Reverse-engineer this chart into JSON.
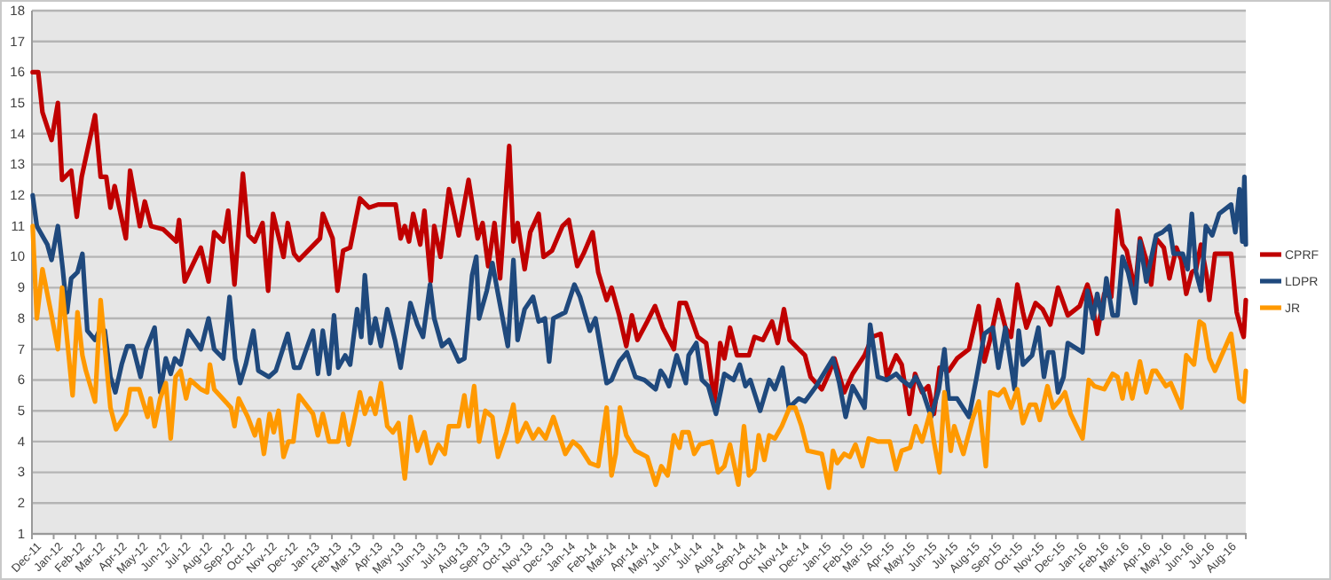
{
  "chart_data": {
    "type": "line",
    "xlim": [
      "2011-12-01",
      "2016-08-28"
    ],
    "xticks": [
      {
        "value": "2011-12-01",
        "label": "Dec-11"
      },
      {
        "value": "2012-01-01",
        "label": "Jan-12"
      },
      {
        "value": "2012-02-01",
        "label": "Feb-12"
      },
      {
        "value": "2012-03-01",
        "label": "Mar-12"
      },
      {
        "value": "2012-04-01",
        "label": "Apr-12"
      },
      {
        "value": "2012-05-01",
        "label": "May-12"
      },
      {
        "value": "2012-06-01",
        "label": "Jun-12"
      },
      {
        "value": "2012-07-01",
        "label": "Jul-12"
      },
      {
        "value": "2012-08-01",
        "label": "Aug-12"
      },
      {
        "value": "2012-09-01",
        "label": "Sep-12"
      },
      {
        "value": "2012-10-01",
        "label": "Oct-12"
      },
      {
        "value": "2012-11-01",
        "label": "Nov-12"
      },
      {
        "value": "2012-12-01",
        "label": "Dec-12"
      },
      {
        "value": "2013-01-01",
        "label": "Jan-13"
      },
      {
        "value": "2013-02-01",
        "label": "Feb-13"
      },
      {
        "value": "2013-03-01",
        "label": "Mar-13"
      },
      {
        "value": "2013-04-01",
        "label": "Apr-13"
      },
      {
        "value": "2013-05-01",
        "label": "May-13"
      },
      {
        "value": "2013-06-01",
        "label": "Jun-13"
      },
      {
        "value": "2013-07-01",
        "label": "Jul-13"
      },
      {
        "value": "2013-08-01",
        "label": "Aug-13"
      },
      {
        "value": "2013-09-01",
        "label": "Sep-13"
      },
      {
        "value": "2013-10-01",
        "label": "Oct-13"
      },
      {
        "value": "2013-11-01",
        "label": "Nov-13"
      },
      {
        "value": "2013-12-01",
        "label": "Dec-13"
      },
      {
        "value": "2014-01-01",
        "label": "Jan-14"
      },
      {
        "value": "2014-02-01",
        "label": "Feb-14"
      },
      {
        "value": "2014-03-01",
        "label": "Mar-14"
      },
      {
        "value": "2014-04-01",
        "label": "Apr-14"
      },
      {
        "value": "2014-05-01",
        "label": "May-14"
      },
      {
        "value": "2014-06-01",
        "label": "Jun-14"
      },
      {
        "value": "2014-07-01",
        "label": "Jul-14"
      },
      {
        "value": "2014-08-01",
        "label": "Aug-14"
      },
      {
        "value": "2014-09-01",
        "label": "Sep-14"
      },
      {
        "value": "2014-10-01",
        "label": "Oct-14"
      },
      {
        "value": "2014-11-01",
        "label": "Nov-14"
      },
      {
        "value": "2014-12-01",
        "label": "Dec-14"
      },
      {
        "value": "2015-01-01",
        "label": "Jan-15"
      },
      {
        "value": "2015-02-01",
        "label": "Feb-15"
      },
      {
        "value": "2015-03-01",
        "label": "Mar-15"
      },
      {
        "value": "2015-04-01",
        "label": "Apr-15"
      },
      {
        "value": "2015-05-01",
        "label": "May-15"
      },
      {
        "value": "2015-06-01",
        "label": "Jun-15"
      },
      {
        "value": "2015-07-01",
        "label": "Jul-15"
      },
      {
        "value": "2015-08-01",
        "label": "Aug-15"
      },
      {
        "value": "2015-09-01",
        "label": "Sep-15"
      },
      {
        "value": "2015-10-01",
        "label": "Oct-15"
      },
      {
        "value": "2015-11-01",
        "label": "Nov-15"
      },
      {
        "value": "2015-12-01",
        "label": "Dec-15"
      },
      {
        "value": "2016-01-01",
        "label": "Jan-16"
      },
      {
        "value": "2016-02-01",
        "label": "Feb-16"
      },
      {
        "value": "2016-03-01",
        "label": "Mar-16"
      },
      {
        "value": "2016-04-01",
        "label": "Apr-16"
      },
      {
        "value": "2016-05-01",
        "label": "May-16"
      },
      {
        "value": "2016-06-01",
        "label": "Jun-16"
      },
      {
        "value": "2016-07-01",
        "label": "Jul-16"
      },
      {
        "value": "2016-08-01",
        "label": "Aug-16"
      }
    ],
    "ylim": [
      1,
      18
    ],
    "yticks": [
      1,
      2,
      3,
      4,
      5,
      6,
      7,
      8,
      9,
      10,
      11,
      12,
      13,
      14,
      15,
      16,
      17,
      18
    ],
    "grid": "y",
    "legend": "right",
    "marker": "none",
    "line_style": "solid",
    "series": [
      {
        "name": "CPRF",
        "color": "#c00000",
        "x": [
          "2011-12-02",
          "2011-12-10",
          "2011-12-16",
          "2011-12-29",
          "2012-01-07",
          "2012-01-13",
          "2012-01-26",
          "2012-02-03",
          "2012-02-10",
          "2012-02-29",
          "2012-03-08",
          "2012-03-16",
          "2012-03-22",
          "2012-03-28",
          "2012-04-13",
          "2012-04-19",
          "2012-05-03",
          "2012-05-10",
          "2012-05-19",
          "2012-06-05",
          "2012-06-24",
          "2012-06-28",
          "2012-07-06",
          "2012-07-29",
          "2012-08-09",
          "2012-08-17",
          "2012-08-30",
          "2012-09-06",
          "2012-09-15",
          "2012-09-27",
          "2012-10-05",
          "2012-10-14",
          "2012-10-25",
          "2012-11-02",
          "2012-11-09",
          "2012-11-24",
          "2012-11-30",
          "2012-12-09",
          "2012-12-16",
          "2013-01-15",
          "2013-01-19",
          "2013-02-02",
          "2013-02-09",
          "2013-02-17",
          "2013-02-27",
          "2013-03-13",
          "2013-03-26",
          "2013-04-08",
          "2013-05-03",
          "2013-05-10",
          "2013-05-16",
          "2013-05-22",
          "2013-05-28",
          "2013-06-07",
          "2013-06-13",
          "2013-06-22",
          "2013-06-27",
          "2013-07-06",
          "2013-07-18",
          "2013-08-01",
          "2013-08-15",
          "2013-08-28",
          "2013-09-04",
          "2013-09-12",
          "2013-09-21",
          "2013-09-29",
          "2013-10-12",
          "2013-10-18",
          "2013-10-24",
          "2013-11-03",
          "2013-11-11",
          "2013-11-23",
          "2013-11-30",
          "2013-12-12",
          "2013-12-27",
          "2014-01-05",
          "2014-01-17",
          "2014-01-26",
          "2014-02-08",
          "2014-02-16",
          "2014-02-28",
          "2014-03-07",
          "2014-03-18",
          "2014-03-28",
          "2014-04-05",
          "2014-04-13",
          "2014-04-27",
          "2014-05-08",
          "2014-05-19",
          "2014-06-04",
          "2014-06-12",
          "2014-06-21",
          "2014-07-08",
          "2014-07-20",
          "2014-08-01",
          "2014-08-09",
          "2014-08-15",
          "2014-08-23",
          "2014-09-02",
          "2014-09-19",
          "2014-09-27",
          "2014-10-09",
          "2014-10-22",
          "2014-10-30",
          "2014-11-08",
          "2014-11-16",
          "2014-11-29",
          "2014-12-08",
          "2014-12-16",
          "2015-01-01",
          "2015-01-11",
          "2015-01-19",
          "2015-02-02",
          "2015-02-14",
          "2015-03-03",
          "2015-03-14",
          "2015-03-26",
          "2015-04-04",
          "2015-04-17",
          "2015-04-25",
          "2015-05-06",
          "2015-05-14",
          "2015-05-24",
          "2015-06-02",
          "2015-06-10",
          "2015-06-18",
          "2015-07-01",
          "2015-07-13",
          "2015-07-30",
          "2015-08-13",
          "2015-08-21",
          "2015-08-29",
          "2015-09-10",
          "2015-09-20",
          "2015-09-28",
          "2015-10-07",
          "2015-10-15",
          "2015-10-20",
          "2015-11-02",
          "2015-11-12",
          "2015-11-23",
          "2015-12-04",
          "2015-12-18",
          "2016-01-04",
          "2016-01-15",
          "2016-01-21",
          "2016-01-29",
          "2016-02-08",
          "2016-02-18",
          "2016-02-27",
          "2016-03-05",
          "2016-03-11",
          "2016-03-23",
          "2016-03-30",
          "2016-04-08",
          "2016-04-15",
          "2016-04-22",
          "2016-05-03",
          "2016-05-11",
          "2016-05-21",
          "2016-05-28",
          "2016-06-04",
          "2016-06-12",
          "2016-06-18",
          "2016-06-25",
          "2016-07-03",
          "2016-07-07",
          "2016-07-15",
          "2016-08-07",
          "2016-08-15",
          "2016-08-22",
          "2016-08-25",
          "2016-08-28"
        ],
        "values": [
          16.0,
          16.0,
          14.7,
          13.8,
          15.0,
          12.5,
          12.8,
          11.3,
          12.6,
          14.6,
          12.6,
          12.6,
          11.6,
          12.3,
          10.6,
          12.8,
          11.0,
          11.8,
          11.0,
          10.9,
          10.5,
          11.2,
          9.2,
          10.3,
          9.2,
          10.8,
          10.5,
          11.5,
          9.1,
          12.7,
          10.7,
          10.5,
          11.1,
          8.9,
          11.4,
          10.0,
          11.1,
          10.1,
          9.9,
          10.6,
          11.4,
          10.6,
          8.9,
          10.2,
          10.3,
          11.9,
          11.6,
          11.7,
          11.7,
          10.6,
          11.0,
          10.5,
          11.4,
          10.4,
          11.5,
          9.2,
          11.0,
          10.0,
          12.2,
          10.7,
          12.5,
          10.6,
          11.1,
          9.7,
          11.1,
          9.3,
          13.6,
          10.5,
          11.1,
          9.6,
          10.8,
          11.4,
          10.0,
          10.2,
          11.0,
          11.2,
          9.7,
          10.1,
          10.8,
          9.5,
          8.6,
          9.0,
          8.1,
          7.1,
          8.1,
          7.3,
          7.9,
          8.4,
          7.7,
          7.0,
          8.5,
          8.5,
          7.4,
          7.2,
          5.3,
          7.2,
          6.7,
          7.7,
          6.8,
          6.8,
          7.4,
          7.3,
          7.9,
          7.2,
          8.3,
          7.3,
          7.0,
          6.8,
          6.1,
          5.7,
          6.2,
          6.7,
          5.6,
          6.2,
          6.8,
          7.4,
          7.5,
          6.1,
          6.8,
          6.5,
          4.9,
          6.2,
          5.6,
          5.8,
          4.9,
          6.4,
          6.3,
          6.7,
          7.0,
          8.4,
          6.6,
          7.3,
          8.6,
          7.7,
          7.4,
          9.1,
          8.2,
          7.7,
          8.5,
          8.3,
          7.8,
          9.0,
          8.1,
          8.4,
          9.1,
          8.6,
          7.5,
          8.8,
          8.7,
          11.5,
          10.4,
          10.2,
          8.9,
          10.6,
          9.9,
          9.1,
          10.6,
          10.3,
          9.3,
          10.3,
          9.9,
          8.8,
          9.5,
          9.6,
          10.4,
          9.4,
          8.6,
          10.1,
          10.1,
          8.2,
          7.6,
          7.4,
          8.6
        ]
      },
      {
        "name": "LDPR",
        "color": "#1f497d",
        "x": [
          "2011-12-02",
          "2011-12-08",
          "2011-12-23",
          "2011-12-29",
          "2012-01-07",
          "2012-01-14",
          "2012-01-20",
          "2012-01-26",
          "2012-02-04",
          "2012-02-11",
          "2012-02-18",
          "2012-02-29",
          "2012-03-08",
          "2012-03-14",
          "2012-03-22",
          "2012-03-29",
          "2012-04-07",
          "2012-04-15",
          "2012-04-23",
          "2012-05-04",
          "2012-05-12",
          "2012-05-24",
          "2012-06-01",
          "2012-06-09",
          "2012-06-16",
          "2012-06-22",
          "2012-06-30",
          "2012-07-11",
          "2012-07-29",
          "2012-08-09",
          "2012-08-17",
          "2012-08-30",
          "2012-09-08",
          "2012-09-16",
          "2012-09-23",
          "2012-10-01",
          "2012-10-12",
          "2012-10-19",
          "2012-11-03",
          "2012-11-13",
          "2012-11-30",
          "2012-12-09",
          "2012-12-17",
          "2013-01-05",
          "2013-01-12",
          "2013-01-19",
          "2013-01-28",
          "2013-02-04",
          "2013-02-10",
          "2013-02-20",
          "2013-02-27",
          "2013-03-09",
          "2013-03-15",
          "2013-03-20",
          "2013-03-28",
          "2013-04-04",
          "2013-04-12",
          "2013-04-21",
          "2013-05-02",
          "2013-05-10",
          "2013-05-24",
          "2013-06-03",
          "2013-06-11",
          "2013-06-21",
          "2013-06-27",
          "2013-07-08",
          "2013-07-18",
          "2013-08-01",
          "2013-08-09",
          "2013-08-20",
          "2013-08-26",
          "2013-08-30",
          "2013-09-10",
          "2013-09-18",
          "2013-09-26",
          "2013-10-10",
          "2013-10-18",
          "2013-10-24",
          "2013-11-03",
          "2013-11-15",
          "2013-11-23",
          "2013-12-02",
          "2013-12-08",
          "2013-12-14",
          "2013-12-31",
          "2014-01-13",
          "2014-01-21",
          "2014-02-04",
          "2014-02-12",
          "2014-02-28",
          "2014-03-07",
          "2014-03-18",
          "2014-03-29",
          "2014-04-10",
          "2014-04-23",
          "2014-05-09",
          "2014-05-16",
          "2014-05-22",
          "2014-05-28",
          "2014-06-08",
          "2014-06-21",
          "2014-06-25",
          "2014-07-06",
          "2014-07-14",
          "2014-07-23",
          "2014-08-03",
          "2014-08-15",
          "2014-08-28",
          "2014-09-06",
          "2014-09-14",
          "2014-09-21",
          "2014-10-05",
          "2014-10-18",
          "2014-10-26",
          "2014-11-06",
          "2014-11-15",
          "2014-11-29",
          "2014-12-08",
          "2014-12-24",
          "2015-01-17",
          "2015-01-26",
          "2015-02-04",
          "2015-02-14",
          "2015-02-24",
          "2015-03-03",
          "2015-03-11",
          "2015-03-22",
          "2015-04-04",
          "2015-04-17",
          "2015-04-25",
          "2015-05-07",
          "2015-05-15",
          "2015-05-24",
          "2015-06-06",
          "2015-06-17",
          "2015-06-25",
          "2015-07-01",
          "2015-07-13",
          "2015-07-30",
          "2015-08-10",
          "2015-08-21",
          "2015-09-02",
          "2015-09-10",
          "2015-09-20",
          "2015-10-03",
          "2015-10-09",
          "2015-10-15",
          "2015-10-28",
          "2015-11-06",
          "2015-11-14",
          "2015-11-20",
          "2015-11-27",
          "2015-12-04",
          "2015-12-12",
          "2015-12-18",
          "2016-01-08",
          "2016-01-15",
          "2016-01-23",
          "2016-01-29",
          "2016-02-05",
          "2016-02-11",
          "2016-02-20",
          "2016-02-27",
          "2016-03-05",
          "2016-03-13",
          "2016-03-23",
          "2016-03-30",
          "2016-04-08",
          "2016-04-22",
          "2016-05-01",
          "2016-05-11",
          "2016-05-17",
          "2016-05-30",
          "2016-06-06",
          "2016-06-12",
          "2016-06-18",
          "2016-06-25",
          "2016-07-02",
          "2016-07-11",
          "2016-07-21",
          "2016-08-07",
          "2016-08-13",
          "2016-08-19",
          "2016-08-23",
          "2016-08-26",
          "2016-08-28"
        ],
        "values": [
          12.0,
          11.0,
          10.4,
          9.9,
          11.0,
          9.6,
          8.2,
          9.3,
          9.5,
          10.1,
          7.6,
          7.3,
          7.7,
          7.6,
          6.1,
          5.6,
          6.5,
          7.1,
          7.1,
          6.1,
          7.0,
          7.7,
          5.6,
          6.7,
          6.2,
          6.7,
          6.5,
          7.6,
          7.0,
          8.0,
          7.0,
          6.7,
          8.7,
          6.7,
          5.9,
          6.5,
          7.6,
          6.3,
          6.1,
          6.3,
          7.5,
          6.4,
          6.4,
          7.6,
          6.2,
          7.6,
          6.2,
          8.1,
          6.4,
          6.8,
          6.5,
          8.3,
          7.4,
          9.4,
          7.2,
          8.0,
          7.1,
          8.3,
          7.3,
          6.4,
          8.5,
          7.8,
          7.4,
          9.1,
          8.0,
          7.1,
          7.3,
          6.6,
          6.7,
          9.4,
          10.0,
          8.0,
          8.9,
          9.8,
          8.8,
          7.1,
          9.9,
          7.3,
          8.3,
          8.7,
          7.9,
          8.0,
          6.6,
          8.0,
          8.2,
          9.1,
          8.7,
          7.6,
          8.0,
          5.9,
          6.0,
          6.6,
          6.9,
          6.1,
          6.0,
          5.7,
          6.3,
          6.1,
          5.8,
          6.8,
          5.9,
          6.8,
          7.2,
          6.0,
          5.8,
          4.9,
          6.2,
          6.0,
          6.5,
          5.8,
          6.0,
          5.0,
          6.0,
          5.7,
          6.4,
          5.1,
          5.4,
          5.3,
          5.8,
          6.7,
          5.9,
          4.8,
          5.8,
          5.4,
          5.1,
          7.8,
          6.1,
          6.0,
          6.2,
          6.0,
          5.8,
          6.1,
          5.7,
          4.8,
          5.7,
          7.0,
          5.4,
          5.4,
          4.8,
          6.1,
          7.5,
          7.7,
          6.4,
          7.7,
          5.7,
          7.6,
          6.5,
          6.8,
          7.7,
          6.1,
          6.9,
          6.9,
          5.6,
          6.1,
          7.2,
          6.9,
          8.9,
          8.0,
          8.8,
          8.0,
          9.3,
          8.1,
          8.1,
          10.0,
          9.5,
          8.5,
          10.5,
          9.2,
          10.7,
          10.8,
          11.0,
          10.1,
          10.1,
          9.6,
          11.4,
          9.5,
          8.9,
          11.0,
          10.7,
          11.4,
          11.7,
          10.8,
          12.2,
          10.5,
          12.6,
          10.4
        ]
      },
      {
        "name": "JR",
        "color": "#ff9900",
        "x": [
          "2011-12-02",
          "2011-12-08",
          "2011-12-16",
          "2011-12-29",
          "2012-01-07",
          "2012-01-13",
          "2012-01-19",
          "2012-01-28",
          "2012-02-04",
          "2012-02-11",
          "2012-02-16",
          "2012-02-29",
          "2012-03-08",
          "2012-03-16",
          "2012-03-22",
          "2012-03-30",
          "2012-04-13",
          "2012-04-19",
          "2012-05-02",
          "2012-05-14",
          "2012-05-18",
          "2012-05-24",
          "2012-06-01",
          "2012-06-09",
          "2012-06-16",
          "2012-06-23",
          "2012-06-30",
          "2012-07-08",
          "2012-07-14",
          "2012-07-29",
          "2012-08-07",
          "2012-08-11",
          "2012-08-17",
          "2012-09-02",
          "2012-09-10",
          "2012-09-15",
          "2012-09-21",
          "2012-10-04",
          "2012-10-14",
          "2012-10-20",
          "2012-10-27",
          "2012-11-04",
          "2012-11-10",
          "2012-11-17",
          "2012-11-24",
          "2012-12-01",
          "2012-12-08",
          "2012-12-16",
          "2013-01-05",
          "2013-01-12",
          "2013-01-19",
          "2013-01-28",
          "2013-02-10",
          "2013-02-17",
          "2013-02-25",
          "2013-03-04",
          "2013-03-13",
          "2013-03-20",
          "2013-03-28",
          "2013-04-04",
          "2013-04-12",
          "2013-04-21",
          "2013-04-29",
          "2013-05-07",
          "2013-05-16",
          "2013-05-24",
          "2013-06-03",
          "2013-06-13",
          "2013-06-22",
          "2013-07-03",
          "2013-07-12",
          "2013-07-18",
          "2013-08-01",
          "2013-08-09",
          "2013-08-15",
          "2013-08-23",
          "2013-08-30",
          "2013-09-08",
          "2013-09-18",
          "2013-09-26",
          "2013-10-08",
          "2013-10-18",
          "2013-10-24",
          "2013-11-05",
          "2013-11-15",
          "2013-11-23",
          "2013-12-03",
          "2013-12-14",
          "2013-12-31",
          "2014-01-11",
          "2014-01-21",
          "2014-02-04",
          "2014-02-16",
          "2014-02-28",
          "2014-03-07",
          "2014-03-13",
          "2014-03-19",
          "2014-03-28",
          "2014-04-10",
          "2014-04-27",
          "2014-05-09",
          "2014-05-17",
          "2014-05-26",
          "2014-06-04",
          "2014-06-12",
          "2014-06-16",
          "2014-06-25",
          "2014-07-03",
          "2014-07-11",
          "2014-07-28",
          "2014-08-06",
          "2014-08-15",
          "2014-08-23",
          "2014-09-04",
          "2014-09-12",
          "2014-09-19",
          "2014-09-27",
          "2014-10-03",
          "2014-10-11",
          "2014-10-18",
          "2014-10-26",
          "2014-11-05",
          "2014-11-16",
          "2014-11-24",
          "2014-12-03",
          "2014-12-12",
          "2015-01-01",
          "2015-01-11",
          "2015-01-17",
          "2015-01-23",
          "2015-02-02",
          "2015-02-10",
          "2015-02-18",
          "2015-02-28",
          "2015-03-09",
          "2015-03-22",
          "2015-04-08",
          "2015-04-17",
          "2015-04-25",
          "2015-05-07",
          "2015-05-15",
          "2015-05-24",
          "2015-06-04",
          "2015-06-10",
          "2015-06-18",
          "2015-06-25",
          "2015-07-04",
          "2015-07-09",
          "2015-07-22",
          "2015-08-05",
          "2015-08-13",
          "2015-08-23",
          "2015-08-29",
          "2015-09-10",
          "2015-09-18",
          "2015-09-28",
          "2015-10-07",
          "2015-10-15",
          "2015-10-25",
          "2015-11-02",
          "2015-11-08",
          "2015-11-19",
          "2015-11-27",
          "2015-12-05",
          "2015-12-14",
          "2015-12-22",
          "2016-01-08",
          "2016-01-17",
          "2016-01-25",
          "2016-02-08",
          "2016-02-20",
          "2016-02-27",
          "2016-03-05",
          "2016-03-11",
          "2016-03-19",
          "2016-03-30",
          "2016-04-08",
          "2016-04-17",
          "2016-04-22",
          "2016-05-06",
          "2016-05-13",
          "2016-05-28",
          "2016-06-04",
          "2016-06-15",
          "2016-06-23",
          "2016-06-29",
          "2016-07-07",
          "2016-07-15",
          "2016-08-07",
          "2016-08-19",
          "2016-08-25",
          "2016-08-28"
        ],
        "values": [
          11.0,
          8.0,
          9.6,
          8.1,
          7.0,
          9.0,
          7.6,
          5.5,
          8.2,
          6.8,
          6.3,
          5.3,
          8.6,
          6.6,
          5.1,
          4.4,
          4.9,
          5.7,
          5.7,
          4.8,
          5.4,
          4.5,
          5.4,
          5.9,
          4.1,
          6.1,
          6.3,
          5.4,
          6.0,
          5.7,
          5.6,
          6.5,
          5.7,
          5.3,
          5.1,
          4.5,
          5.4,
          4.8,
          4.2,
          4.7,
          3.6,
          4.9,
          4.3,
          5.0,
          3.5,
          4.0,
          4.0,
          5.5,
          4.9,
          4.2,
          4.9,
          4.0,
          4.0,
          4.9,
          3.9,
          4.6,
          5.6,
          4.9,
          5.4,
          4.9,
          5.9,
          4.5,
          4.3,
          4.6,
          2.8,
          4.8,
          3.7,
          4.3,
          3.3,
          3.9,
          3.6,
          4.5,
          4.5,
          5.5,
          4.5,
          5.8,
          4.0,
          5.0,
          4.8,
          3.5,
          4.3,
          5.2,
          4.0,
          4.6,
          4.1,
          4.4,
          4.1,
          4.8,
          3.6,
          4.0,
          3.8,
          3.3,
          3.2,
          5.1,
          2.9,
          3.6,
          5.1,
          4.2,
          3.7,
          3.5,
          2.6,
          3.2,
          2.9,
          4.2,
          3.8,
          4.3,
          4.3,
          3.6,
          3.9,
          4.0,
          3.0,
          3.2,
          3.9,
          2.6,
          4.5,
          2.9,
          3.1,
          4.2,
          3.4,
          4.2,
          4.1,
          4.5,
          5.1,
          5.1,
          4.5,
          3.7,
          3.6,
          2.5,
          3.7,
          3.3,
          3.6,
          3.5,
          3.9,
          3.2,
          4.1,
          4.0,
          4.0,
          3.1,
          3.7,
          3.8,
          4.5,
          4.0,
          4.9,
          4.0,
          3.0,
          5.6,
          3.7,
          4.5,
          3.6,
          4.8,
          5.3,
          3.2,
          5.6,
          5.5,
          5.7,
          5.1,
          5.7,
          4.6,
          5.2,
          5.2,
          4.7,
          5.8,
          5.1,
          5.3,
          5.6,
          4.9,
          4.1,
          6.0,
          5.8,
          5.7,
          6.2,
          6.1,
          5.4,
          6.2,
          5.4,
          6.6,
          5.6,
          6.3,
          6.3,
          5.8,
          5.9,
          5.1,
          6.8,
          6.5,
          7.9,
          7.8,
          6.7,
          6.3,
          7.5,
          5.4,
          5.3,
          6.3
        ]
      }
    ]
  }
}
